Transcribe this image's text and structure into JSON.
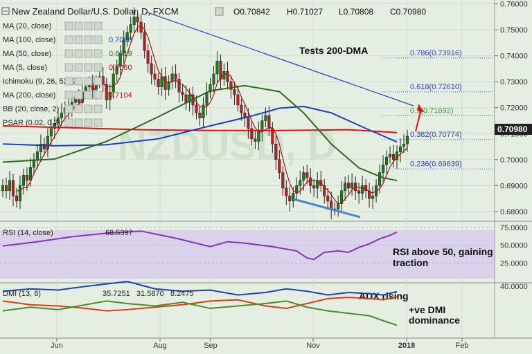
{
  "header": {
    "title": "New Zealand Dollar/U.S. Dollar, D, FXCM",
    "open": "O0.70842",
    "high": "H0.71027",
    "low": "L0.70808",
    "close": "C0.70980"
  },
  "indicators": [
    {
      "label": "MA (20, close)",
      "value": "",
      "color": "#888888"
    },
    {
      "label": "MA (100, close)",
      "value": "0.7068",
      "color": "#1f3fbf"
    },
    {
      "label": "MA (50, close)",
      "value": "0.6919",
      "color": "#2a6b1f"
    },
    {
      "label": "MA (5, close)",
      "value": "0.7060",
      "color": "#b01010"
    },
    {
      "label": "Ichimoku (9, 26, 52, 26)",
      "value": "",
      "color": "#888888"
    },
    {
      "label": "MA (200, close)",
      "value": "0.7104",
      "color": "#e01010"
    },
    {
      "label": "BB (20, close, 2)",
      "value": "",
      "color": "#888888"
    },
    {
      "label": "PSAR (0.02, 0.2)",
      "value": "",
      "color": "#888888"
    }
  ],
  "annotations": {
    "tests": "Tests 200-DMA",
    "rsi_note_1": "RSI above 50, gaining",
    "rsi_note_2": "traction",
    "adx_note": "ADX rising",
    "dmi_note_1": "+ve DMI",
    "dmi_note_2": "dominance"
  },
  "fib_levels": [
    {
      "label": "0.786(0.73916)",
      "value": 0.73916
    },
    {
      "label": "0.618(0.72610)",
      "value": 0.7261
    },
    {
      "label": "0.5(0.71692)",
      "value": 0.71692
    },
    {
      "label": "0.382(0.70774)",
      "value": 0.70774
    },
    {
      "label": "0.236(0.69639)",
      "value": 0.69639
    }
  ],
  "current_price": "0.70980",
  "rsi": {
    "label": "RSI (14, close)",
    "value": "68.5397"
  },
  "dmi": {
    "label": "DMI (13, 8)",
    "plus": "35.7251",
    "minus": "31.5870",
    "adx": "8.2475"
  },
  "watermark": "NZDUSD, D",
  "chart_data": {
    "type": "candlestick",
    "x_labels": [
      "Jun",
      "Aug",
      "Sep",
      "Nov",
      "2018",
      "Feb"
    ],
    "price_axis": [
      "0.76000",
      "0.75000",
      "0.74000",
      "0.73000",
      "0.72000",
      "0.71000",
      "0.70000",
      "0.69000",
      "0.68000"
    ],
    "ylim": [
      0.6765,
      0.7615
    ],
    "rsi_axis": [
      "75.0000",
      "50.0000",
      "25.0000"
    ],
    "dmi_axis": [
      "40.0000"
    ],
    "close": [
      0.69,
      0.688,
      0.692,
      0.686,
      0.684,
      0.69,
      0.694,
      0.692,
      0.697,
      0.7,
      0.703,
      0.706,
      0.704,
      0.709,
      0.712,
      0.714,
      0.716,
      0.718,
      0.72,
      0.719,
      0.722,
      0.724,
      0.722,
      0.726,
      0.728,
      0.729,
      0.727,
      0.73,
      0.732,
      0.729,
      0.723,
      0.726,
      0.733,
      0.736,
      0.741,
      0.746,
      0.749,
      0.752,
      0.755,
      0.753,
      0.749,
      0.742,
      0.737,
      0.733,
      0.731,
      0.728,
      0.732,
      0.727,
      0.73,
      0.733,
      0.731,
      0.726,
      0.725,
      0.722,
      0.725,
      0.721,
      0.718,
      0.716,
      0.721,
      0.726,
      0.729,
      0.733,
      0.738,
      0.731,
      0.734,
      0.73,
      0.727,
      0.725,
      0.721,
      0.718,
      0.716,
      0.712,
      0.708,
      0.707,
      0.711,
      0.715,
      0.717,
      0.712,
      0.706,
      0.7,
      0.695,
      0.689,
      0.686,
      0.684,
      0.687,
      0.69,
      0.692,
      0.695,
      0.693,
      0.69,
      0.689,
      0.692,
      0.69,
      0.686,
      0.684,
      0.681,
      0.681,
      0.683,
      0.688,
      0.691,
      0.689,
      0.691,
      0.688,
      0.687,
      0.69,
      0.688,
      0.685,
      0.686,
      0.69,
      0.695,
      0.698,
      0.701,
      0.702,
      0.7,
      0.703,
      0.705,
      0.706,
      0.709
    ],
    "series": [
      {
        "name": "MA (200, close)",
        "color": "#e01010",
        "values": [
          [
            0,
            0.713
          ],
          [
            40,
            0.7115
          ],
          [
            60,
            0.7112
          ],
          [
            80,
            0.7112
          ],
          [
            100,
            0.7115
          ],
          [
            114,
            0.7104
          ]
        ]
      },
      {
        "name": "MA (100, close)",
        "color": "#1f3fbf",
        "values": [
          [
            0,
            0.706
          ],
          [
            15,
            0.7053
          ],
          [
            30,
            0.7057
          ],
          [
            45,
            0.708
          ],
          [
            60,
            0.713
          ],
          [
            72,
            0.7168
          ],
          [
            80,
            0.7198
          ],
          [
            87,
            0.7205
          ],
          [
            95,
            0.718
          ],
          [
            105,
            0.712
          ],
          [
            114,
            0.7068
          ]
        ]
      },
      {
        "name": "MA (50, close)",
        "color": "#2a6b1f",
        "values": [
          [
            0,
            0.699
          ],
          [
            15,
            0.7002
          ],
          [
            30,
            0.707
          ],
          [
            45,
            0.7165
          ],
          [
            60,
            0.7265
          ],
          [
            70,
            0.7285
          ],
          [
            80,
            0.7262
          ],
          [
            87,
            0.718
          ],
          [
            95,
            0.706
          ],
          [
            103,
            0.6968
          ],
          [
            110,
            0.693
          ],
          [
            114,
            0.6919
          ]
        ]
      },
      {
        "name": "RSI (14, close)",
        "color": "#8a2fbf",
        "values": [
          [
            0,
            49
          ],
          [
            10,
            55
          ],
          [
            20,
            62
          ],
          [
            30,
            67
          ],
          [
            40,
            70
          ],
          [
            50,
            60
          ],
          [
            60,
            48
          ],
          [
            65,
            55
          ],
          [
            70,
            53
          ],
          [
            78,
            48
          ],
          [
            85,
            42
          ],
          [
            88,
            32
          ],
          [
            90,
            30
          ],
          [
            93,
            40
          ],
          [
            97,
            42
          ],
          [
            100,
            40
          ],
          [
            103,
            47
          ],
          [
            106,
            52
          ],
          [
            109,
            59
          ],
          [
            112,
            64
          ],
          [
            114,
            68.5
          ]
        ]
      },
      {
        "name": "+DI",
        "color": "#1f3fbf",
        "values": [
          [
            0,
            36
          ],
          [
            8,
            38
          ],
          [
            16,
            37
          ],
          [
            24,
            40
          ],
          [
            30,
            42
          ],
          [
            36,
            44
          ],
          [
            40,
            41
          ],
          [
            44,
            38
          ],
          [
            52,
            36
          ],
          [
            60,
            37
          ],
          [
            68,
            33
          ],
          [
            76,
            35
          ],
          [
            82,
            38
          ],
          [
            88,
            36
          ],
          [
            94,
            33
          ],
          [
            100,
            35
          ],
          [
            106,
            34
          ],
          [
            110,
            33
          ],
          [
            114,
            35.7
          ]
        ]
      },
      {
        "name": "-DI",
        "color": "#d94010",
        "values": [
          [
            0,
            28
          ],
          [
            8,
            25
          ],
          [
            16,
            24
          ],
          [
            24,
            22
          ],
          [
            30,
            20
          ],
          [
            36,
            21
          ],
          [
            44,
            23
          ],
          [
            52,
            25
          ],
          [
            60,
            28
          ],
          [
            68,
            29
          ],
          [
            76,
            24
          ],
          [
            82,
            22
          ],
          [
            88,
            26
          ],
          [
            94,
            30
          ],
          [
            100,
            31
          ],
          [
            106,
            30
          ],
          [
            110,
            29
          ],
          [
            114,
            31.6
          ]
        ]
      },
      {
        "name": "ADX",
        "color": "#4c8a2c",
        "values": [
          [
            0,
            20
          ],
          [
            8,
            23
          ],
          [
            16,
            21
          ],
          [
            24,
            25
          ],
          [
            30,
            28
          ],
          [
            36,
            26
          ],
          [
            44,
            24
          ],
          [
            52,
            27
          ],
          [
            60,
            22
          ],
          [
            68,
            24
          ],
          [
            76,
            26
          ],
          [
            82,
            28
          ],
          [
            88,
            23
          ],
          [
            94,
            20
          ],
          [
            100,
            18
          ],
          [
            106,
            16
          ],
          [
            110,
            12
          ],
          [
            114,
            8.2
          ]
        ]
      }
    ]
  }
}
